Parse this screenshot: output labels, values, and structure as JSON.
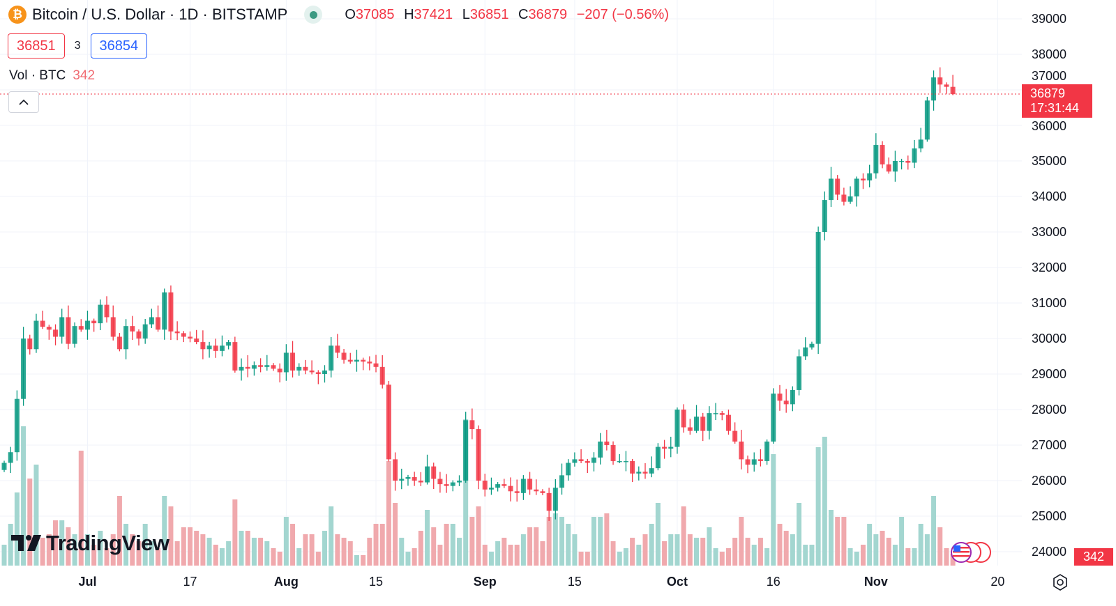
{
  "header": {
    "symbol_icon": "bitcoin-icon",
    "title": "Bitcoin / U.S. Dollar · 1D · BITSTAMP",
    "market_status_icon": "market-open-dot-icon",
    "ohlc": {
      "o_label": "O",
      "o": "37085",
      "h_label": "H",
      "h": "37421",
      "l_label": "L",
      "l": "36851",
      "c_label": "C",
      "c": "36879",
      "change": "−207 (−0.56%)"
    }
  },
  "quotes": {
    "bid": "36851",
    "spread": "3",
    "ask": "36854"
  },
  "volume_legend": {
    "label": "Vol · BTC",
    "value": "342"
  },
  "last_price": {
    "price": "36879",
    "countdown": "17:31:44"
  },
  "last_volume": "342",
  "logo": "TradingView",
  "colors": {
    "up": "#089981",
    "down": "#f23645",
    "grid": "#f0f3fa",
    "up_vol": "#a3d6d0",
    "down_vol": "#f0a9ad"
  },
  "chart_data": {
    "type": "candlestick",
    "title": "Bitcoin / U.S. Dollar · 1D · BITSTAMP",
    "ylim": [
      24000,
      39000
    ],
    "y_ticks": [
      "39000",
      "38000",
      "37000",
      "36000",
      "35000",
      "34000",
      "33000",
      "32000",
      "31000",
      "30000",
      "29000",
      "28000",
      "27000",
      "26000",
      "25000",
      "24000"
    ],
    "x_ticks": [
      {
        "label": "Jul",
        "day": 13,
        "month": true
      },
      {
        "label": "17",
        "day": 29,
        "month": false
      },
      {
        "label": "Aug",
        "day": 44,
        "month": true
      },
      {
        "label": "15",
        "day": 58,
        "month": false
      },
      {
        "label": "Sep",
        "day": 75,
        "month": true
      },
      {
        "label": "15",
        "day": 89,
        "month": false
      },
      {
        "label": "Oct",
        "day": 105,
        "month": true
      },
      {
        "label": "16",
        "day": 120,
        "month": false
      },
      {
        "label": "Nov",
        "day": 136,
        "month": true
      },
      {
        "label": "20",
        "day": 155,
        "month": false
      }
    ],
    "first_open": 26300,
    "close": [
      26500,
      26800,
      28300,
      30000,
      29700,
      30500,
      30330,
      30250,
      30050,
      30600,
      29850,
      30350,
      30250,
      30500,
      30430,
      30950,
      30600,
      30050,
      29700,
      30350,
      30200,
      30000,
      30400,
      30600,
      30250,
      31300,
      30200,
      30150,
      30050,
      30000,
      29900,
      29700,
      29800,
      29650,
      29800,
      29900,
      29100,
      29200,
      29150,
      29250,
      29200,
      29250,
      29150,
      29050,
      29600,
      29100,
      29200,
      29100,
      29050,
      29000,
      29100,
      29800,
      29600,
      29400,
      29350,
      29400,
      29350,
      29300,
      29200,
      28700,
      26600,
      26000,
      26050,
      26100,
      26000,
      25950,
      26400,
      26050,
      25900,
      25850,
      25950,
      26000,
      27700,
      27450,
      26000,
      25750,
      25800,
      25900,
      25850,
      25700,
      25650,
      26050,
      25750,
      25700,
      25650,
      25150,
      25800,
      26150,
      26500,
      26600,
      26550,
      26500,
      26650,
      27100,
      27000,
      26550,
      26550,
      26550,
      26200,
      26250,
      26200,
      26350,
      26950,
      26900,
      26950,
      28000,
      27500,
      27400,
      27800,
      27400,
      27900,
      27900,
      27850,
      27400,
      27100,
      26600,
      26450,
      26600,
      26550,
      27100,
      28450,
      28250,
      28150,
      28550,
      29500,
      29750,
      29850,
      33000,
      33900,
      34500,
      34050,
      33850,
      34000,
      34500,
      34450,
      34650,
      35450,
      34900,
      34700,
      35000,
      35000,
      34950,
      35350,
      35600,
      36700,
      37350,
      37150,
      37085,
      36879
    ],
    "last_high": 37421,
    "last_low": 36851,
    "volume": [
      600,
      1200,
      2100,
      4000,
      2500,
      2900,
      800,
      900,
      1300,
      1300,
      1100,
      900,
      3300,
      900,
      600,
      1000,
      500,
      900,
      2000,
      1200,
      900,
      700,
      1200,
      700,
      500,
      2000,
      1700,
      700,
      1100,
      1100,
      1000,
      900,
      800,
      600,
      500,
      700,
      1900,
      1000,
      1000,
      800,
      800,
      700,
      500,
      400,
      1400,
      1200,
      500,
      900,
      900,
      400,
      1000,
      1700,
      900,
      800,
      700,
      300,
      300,
      800,
      1200,
      1200,
      3000,
      1800,
      800,
      400,
      500,
      1000,
      1600,
      1100,
      600,
      1200,
      1200,
      800,
      4200,
      1400,
      1700,
      600,
      400,
      700,
      800,
      600,
      600,
      900,
      1100,
      1100,
      700,
      1400,
      1500,
      1400,
      1200,
      900,
      400,
      400,
      1400,
      1400,
      1500,
      700,
      400,
      500,
      800,
      600,
      900,
      1200,
      1800,
      700,
      900,
      900,
      1700,
      900,
      800,
      800,
      1100,
      500,
      400,
      500,
      800,
      1400,
      800,
      600,
      800,
      500,
      3200,
      1200,
      1000,
      900,
      1800,
      600,
      600,
      3400,
      3700,
      1600,
      1400,
      1400,
      500,
      400,
      600,
      1200,
      900,
      1000,
      800,
      600,
      1400,
      500,
      500,
      1200,
      900,
      2000,
      1100,
      500,
      342
    ]
  }
}
